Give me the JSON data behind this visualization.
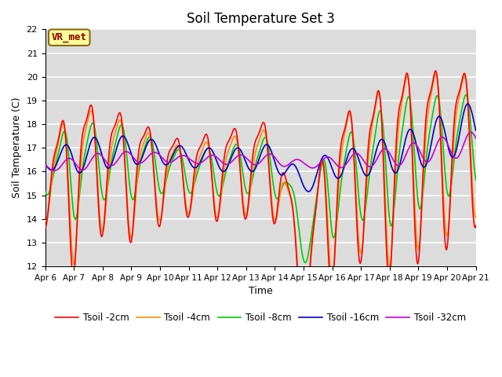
{
  "title": "Soil Temperature Set 3",
  "xlabel": "Time",
  "ylabel": "Soil Temperature (C)",
  "ylim": [
    12.0,
    22.0
  ],
  "yticks": [
    12.0,
    13.0,
    14.0,
    15.0,
    16.0,
    17.0,
    18.0,
    19.0,
    20.0,
    21.0,
    22.0
  ],
  "xtick_labels": [
    "Apr 6",
    "Apr 7",
    "Apr 8",
    "Apr 9",
    "Apr 10",
    "Apr 11",
    "Apr 12",
    "Apr 13",
    "Apr 14",
    "Apr 15",
    "Apr 16",
    "Apr 17",
    "Apr 18",
    "Apr 19",
    "Apr 20",
    "Apr 21"
  ],
  "background_color": "#dcdcdc",
  "grid_color": "#ffffff",
  "annotation_text": "VR_met",
  "annotation_color": "#8b0000",
  "annotation_bg": "#ffff99",
  "line_colors": [
    "#ff0000",
    "#ff8c00",
    "#00cc00",
    "#0000cc",
    "#cc00cc"
  ],
  "line_labels": [
    "Tsoil -2cm",
    "Tsoil -4cm",
    "Tsoil -8cm",
    "Tsoil -16cm",
    "Tsoil -32cm"
  ],
  "title_fontsize": 12
}
